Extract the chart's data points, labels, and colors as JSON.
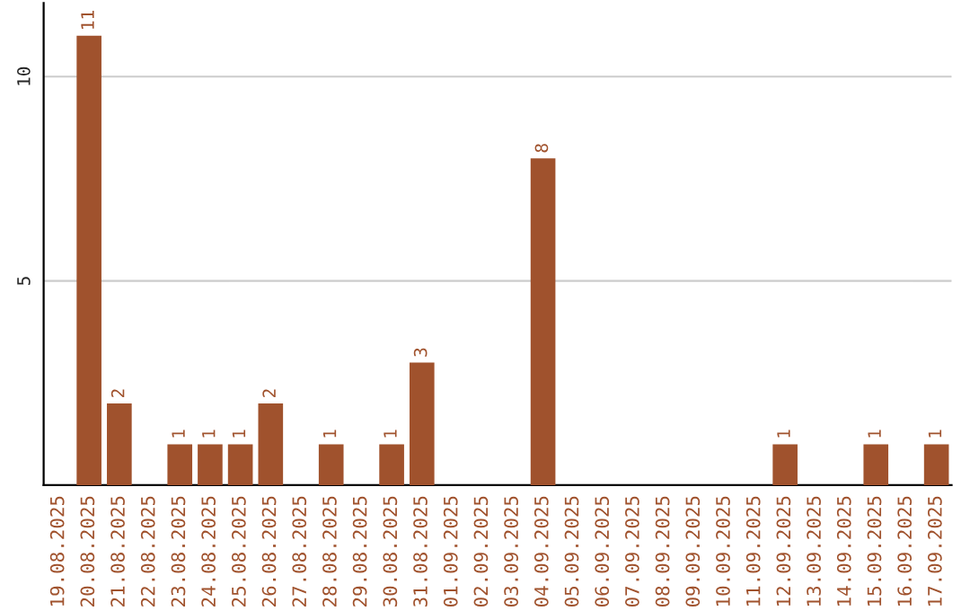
{
  "chart_data": {
    "type": "bar",
    "categories": [
      "19.08.2025",
      "20.08.2025",
      "21.08.2025",
      "22.08.2025",
      "23.08.2025",
      "24.08.2025",
      "25.08.2025",
      "26.08.2025",
      "27.08.2025",
      "28.08.2025",
      "29.08.2025",
      "30.08.2025",
      "31.08.2025",
      "01.09.2025",
      "02.09.2025",
      "03.09.2025",
      "04.09.2025",
      "05.09.2025",
      "06.09.2025",
      "07.09.2025",
      "08.09.2025",
      "09.09.2025",
      "10.09.2025",
      "11.09.2025",
      "12.09.2025",
      "13.09.2025",
      "14.09.2025",
      "15.09.2025",
      "16.09.2025",
      "17.09.2025"
    ],
    "values": [
      0,
      11,
      2,
      0,
      1,
      1,
      1,
      2,
      0,
      1,
      0,
      1,
      3,
      0,
      0,
      0,
      8,
      0,
      0,
      0,
      0,
      0,
      0,
      0,
      1,
      0,
      0,
      1,
      0,
      1
    ],
    "value_labels": [
      null,
      "11",
      "2",
      null,
      "1",
      "1",
      "1",
      "2",
      null,
      "1",
      null,
      "1",
      "3",
      null,
      null,
      null,
      "8",
      null,
      null,
      null,
      null,
      null,
      null,
      null,
      "1",
      null,
      null,
      "1",
      null,
      "1"
    ],
    "color": "#a0522d",
    "ylim": [
      0,
      11.8
    ],
    "yticks": [
      5,
      10
    ],
    "grid": "y"
  }
}
